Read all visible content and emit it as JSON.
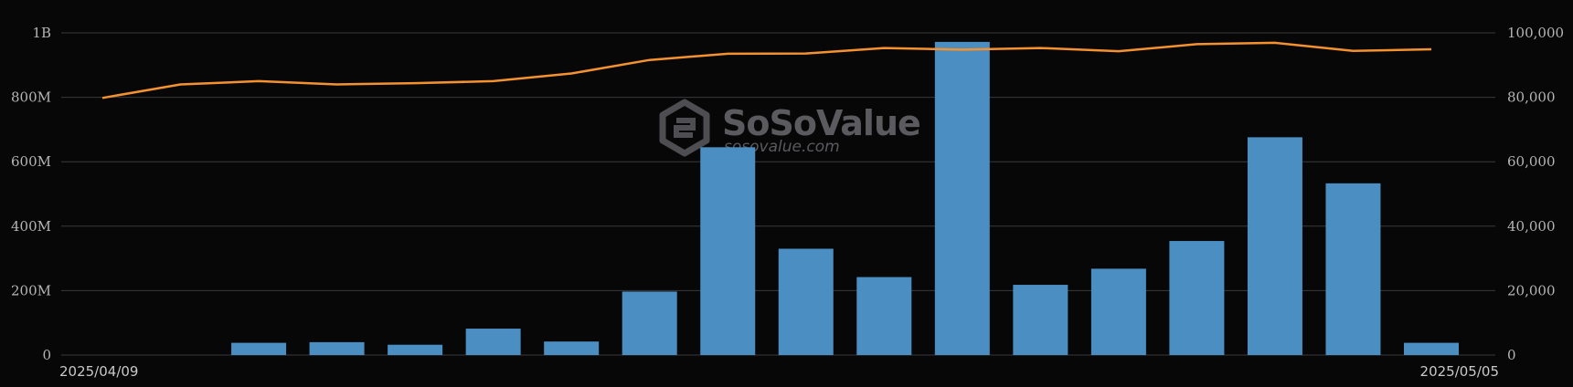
{
  "watermark": {
    "brand": "SoSoValue",
    "url": "sosovalue.com"
  },
  "chart_data": {
    "type": "bar",
    "x_start_label": "2025/04/09",
    "x_end_label": "2025/05/05",
    "left_axis": {
      "ticks": [
        "0",
        "200M",
        "400M",
        "600M",
        "800M",
        "1B"
      ],
      "ylim": [
        0,
        1000000000
      ]
    },
    "right_axis": {
      "ticks": [
        "0",
        "20,000",
        "40,000",
        "60,000",
        "80,000",
        "100,000"
      ],
      "ylim": [
        0,
        100000
      ]
    },
    "grid": true,
    "series": [
      {
        "kind": "bar",
        "axis": "left",
        "color": "#4b8ec2",
        "values": [
          0,
          0,
          38000000,
          40000000,
          32000000,
          82000000,
          42000000,
          197000000,
          645000000,
          330000000,
          242000000,
          972000000,
          218000000,
          268000000,
          354000000,
          676000000,
          533000000,
          38000000
        ]
      },
      {
        "kind": "line",
        "axis": "right",
        "color": "#f5922f",
        "values": [
          79800,
          84000,
          85000,
          84000,
          84400,
          85000,
          87400,
          91600,
          93500,
          93600,
          95300,
          94800,
          95300,
          94300,
          96500,
          96900,
          94400,
          94900
        ]
      }
    ]
  }
}
